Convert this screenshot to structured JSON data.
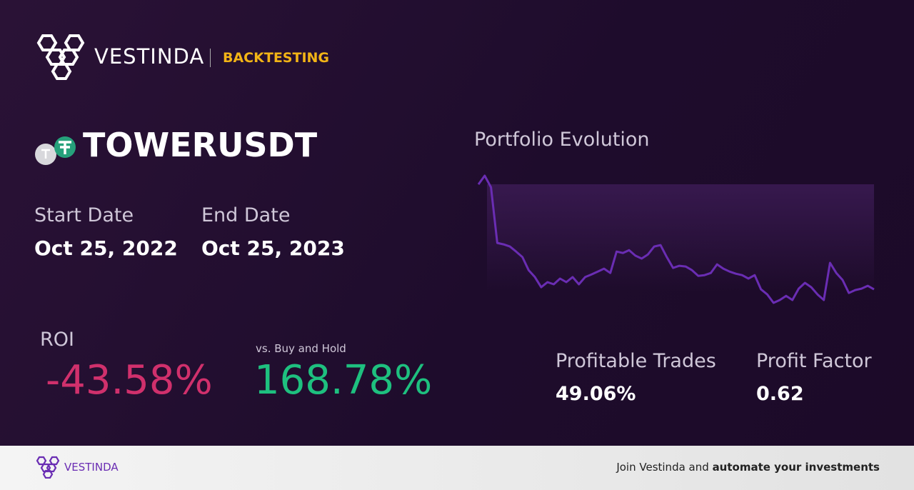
{
  "header": {
    "brand": "VESTINDA",
    "section": "BACKTESTING"
  },
  "asset": {
    "symbol": "TOWERUSDT"
  },
  "dates": {
    "start_label": "Start Date",
    "start_value": "Oct 25, 2022",
    "end_label": "End Date",
    "end_value": "Oct 25, 2023"
  },
  "roi": {
    "label": "ROI",
    "value": "-43.58%",
    "compare_label": "vs. Buy and Hold",
    "compare_value": "168.78%"
  },
  "stats": {
    "profitable_label": "Profitable Trades",
    "profitable_value": "49.06%",
    "factor_label": "Profit Factor",
    "factor_value": "0.62"
  },
  "chart_data": {
    "type": "line",
    "title": "Portfolio Evolution",
    "color": "#6a2db3",
    "values": [
      100,
      103.6,
      98.8,
      75.7,
      75.1,
      74.2,
      72.1,
      69.8,
      64.4,
      61.5,
      57.3,
      59.4,
      58.5,
      60.9,
      59.4,
      61.5,
      58.5,
      61.5,
      62.6,
      63.8,
      65.0,
      63.2,
      72.1,
      71.5,
      72.7,
      70.4,
      69.2,
      70.9,
      74.2,
      74.8,
      69.8,
      65.3,
      66.2,
      65.9,
      64.4,
      62.0,
      62.3,
      63.2,
      66.8,
      65.0,
      63.8,
      62.9,
      62.3,
      60.9,
      62.3,
      56.4,
      54.3,
      50.8,
      52.0,
      53.7,
      52.0,
      56.7,
      59.1,
      57.3,
      54.3,
      52.0,
      67.4,
      63.2,
      60.3,
      54.9,
      56.1,
      56.7,
      57.9,
      56.4
    ]
  },
  "footer": {
    "brand": "VESTINDA",
    "cta_prefix": "Join Vestinda and",
    "cta_bold": "automate your investments"
  }
}
